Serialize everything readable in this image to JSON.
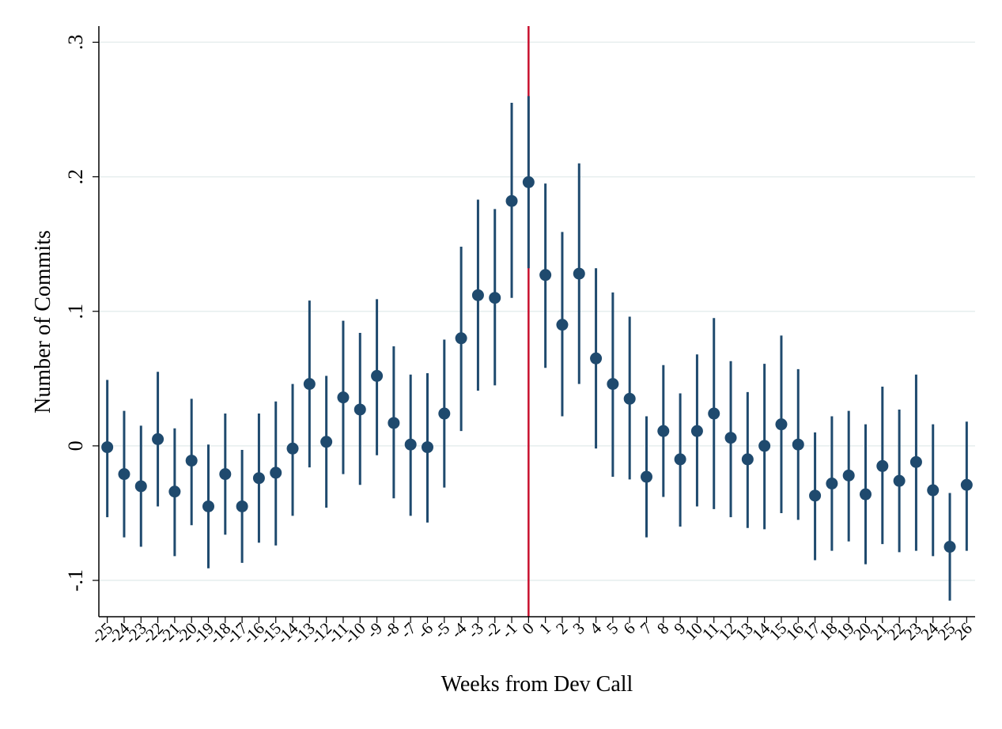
{
  "chart_data": {
    "type": "scatter",
    "subtype": "coefficient-plot-with-confidence-intervals",
    "title": "",
    "xlabel": "Weeks from Dev Call",
    "ylabel": "Number of Commits",
    "xlim": [
      -25.5,
      26.5
    ],
    "ylim": [
      -0.127,
      0.312
    ],
    "yticks": [
      -0.1,
      0,
      0.1,
      0.2,
      0.3
    ],
    "ytick_labels": [
      "-.1",
      "0",
      ".1",
      ".2",
      ".3"
    ],
    "grid": true,
    "legend": "none",
    "reference_line": {
      "axis": "x",
      "value": 0,
      "color": "#c8102e"
    },
    "colors": {
      "marker": "#1f4a6e",
      "ci": "#1f4a6e",
      "grid": "#e6eeee"
    },
    "series": [
      {
        "x": [
          -25,
          -24,
          -23,
          -22,
          -21,
          -20,
          -19,
          -18,
          -17,
          -16,
          -15,
          -14,
          -13,
          -12,
          -11,
          -10,
          -9,
          -8,
          -7,
          -6,
          -5,
          -4,
          -3,
          -2,
          -1,
          0,
          1,
          2,
          3,
          4,
          5,
          6,
          7,
          8,
          9,
          10,
          11,
          12,
          13,
          14,
          15,
          16,
          17,
          18,
          19,
          20,
          21,
          22,
          23,
          24,
          25,
          26
        ],
        "y": [
          -0.001,
          -0.021,
          -0.03,
          0.005,
          -0.034,
          -0.011,
          -0.045,
          -0.021,
          -0.045,
          -0.024,
          -0.02,
          -0.002,
          0.046,
          0.003,
          0.036,
          0.027,
          0.052,
          0.017,
          0.001,
          -0.001,
          0.024,
          0.08,
          0.112,
          0.11,
          0.182,
          0.196,
          0.127,
          0.09,
          0.128,
          0.065,
          0.046,
          0.035,
          -0.023,
          0.011,
          -0.01,
          0.011,
          0.024,
          0.006,
          -0.01,
          0.0,
          0.016,
          0.001,
          -0.037,
          -0.028,
          -0.022,
          -0.036,
          -0.015,
          -0.026,
          -0.012,
          -0.033,
          -0.075,
          -0.029
        ],
        "ci_low": [
          -0.053,
          -0.068,
          -0.075,
          -0.045,
          -0.082,
          -0.059,
          -0.091,
          -0.066,
          -0.087,
          -0.072,
          -0.074,
          -0.052,
          -0.016,
          -0.046,
          -0.021,
          -0.029,
          -0.007,
          -0.039,
          -0.052,
          -0.057,
          -0.031,
          0.011,
          0.041,
          0.045,
          0.11,
          0.132,
          0.058,
          0.022,
          0.046,
          -0.002,
          -0.023,
          -0.025,
          -0.068,
          -0.038,
          -0.06,
          -0.045,
          -0.047,
          -0.053,
          -0.061,
          -0.062,
          -0.05,
          -0.055,
          -0.085,
          -0.078,
          -0.071,
          -0.088,
          -0.073,
          -0.079,
          -0.078,
          -0.082,
          -0.115,
          -0.078
        ],
        "ci_high": [
          0.049,
          0.026,
          0.015,
          0.055,
          0.013,
          0.035,
          0.001,
          0.024,
          -0.003,
          0.024,
          0.033,
          0.046,
          0.108,
          0.052,
          0.093,
          0.084,
          0.109,
          0.074,
          0.053,
          0.054,
          0.079,
          0.148,
          0.183,
          0.176,
          0.255,
          0.26,
          0.195,
          0.159,
          0.21,
          0.132,
          0.114,
          0.096,
          0.022,
          0.06,
          0.039,
          0.068,
          0.095,
          0.063,
          0.04,
          0.061,
          0.082,
          0.057,
          0.01,
          0.022,
          0.026,
          0.016,
          0.044,
          0.027,
          0.053,
          0.016,
          -0.035,
          0.018
        ]
      }
    ]
  }
}
